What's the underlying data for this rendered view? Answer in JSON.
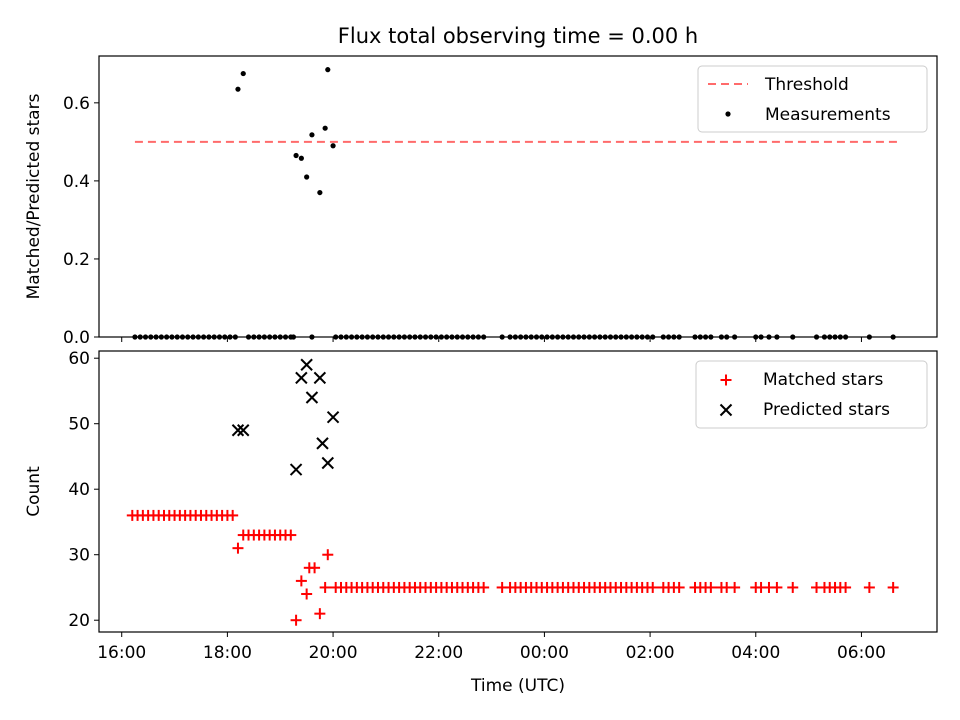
{
  "figure": {
    "title": "Flux total observing time = 0.00 h"
  },
  "colors": {
    "threshold": "#ff6b6b",
    "measurements": "#000000",
    "matched": "#ff0000",
    "predicted": "#000000"
  },
  "chart_data": [
    {
      "type": "scatter",
      "panel": "top",
      "title": "Flux total observing time = 0.00 h",
      "xlabel": "",
      "ylabel": "Matched/Predicted stars",
      "x_unit": "hours (UTC, 16:00 = 16, 00:00 next day = 24)",
      "xlim": [
        15.57,
        31.43
      ],
      "ylim": [
        0.0,
        0.72
      ],
      "yticks": [
        "0.0",
        "0.2",
        "0.4",
        "0.6"
      ],
      "ytick_values": [
        0.0,
        0.2,
        0.4,
        0.6
      ],
      "grid": false,
      "legend_position": "upper right",
      "threshold": {
        "name": "Threshold",
        "y": 0.5,
        "x": [
          16.25,
          30.7
        ]
      },
      "series": [
        {
          "name": "Measurements",
          "marker": "dot",
          "points": [
            [
              18.2,
              0.635
            ],
            [
              18.3,
              0.675
            ],
            [
              19.3,
              0.465
            ],
            [
              19.4,
              0.458
            ],
            [
              19.5,
              0.41
            ],
            [
              19.6,
              0.518
            ],
            [
              19.75,
              0.37
            ],
            [
              19.85,
              0.535
            ],
            [
              19.9,
              0.685
            ],
            [
              20.0,
              0.49
            ]
          ],
          "zero_points": [
            16.25,
            16.35,
            16.45,
            16.55,
            16.65,
            16.75,
            16.85,
            16.95,
            17.05,
            17.15,
            17.25,
            17.35,
            17.45,
            17.55,
            17.65,
            17.75,
            17.85,
            17.95,
            18.05,
            18.15,
            18.4,
            18.5,
            18.6,
            18.7,
            18.8,
            18.9,
            19.0,
            19.1,
            19.2,
            19.25,
            19.6,
            20.05,
            20.15,
            20.25,
            20.35,
            20.45,
            20.55,
            20.65,
            20.75,
            20.85,
            20.95,
            21.05,
            21.15,
            21.25,
            21.35,
            21.45,
            21.55,
            21.65,
            21.75,
            21.85,
            21.95,
            22.05,
            22.15,
            22.25,
            22.35,
            22.45,
            22.55,
            22.65,
            22.75,
            22.85,
            23.2,
            23.35,
            23.45,
            23.55,
            23.65,
            23.75,
            23.85,
            23.95,
            24.05,
            24.15,
            24.25,
            24.35,
            24.45,
            24.55,
            24.65,
            24.75,
            24.85,
            24.95,
            25.05,
            25.15,
            25.25,
            25.35,
            25.45,
            25.55,
            25.65,
            25.75,
            25.85,
            25.95,
            26.05,
            26.25,
            26.35,
            26.45,
            26.55,
            26.85,
            26.95,
            27.05,
            27.15,
            27.35,
            27.45,
            27.6,
            28.0,
            28.1,
            28.25,
            28.4,
            28.7,
            29.15,
            29.3,
            29.4,
            29.5,
            29.6,
            29.7,
            30.15,
            30.6
          ]
        }
      ]
    },
    {
      "type": "scatter",
      "panel": "bottom",
      "xlabel": "Time (UTC)",
      "ylabel": "Count",
      "x_unit": "hours (UTC, 16:00 = 16, 00:00 next day = 24)",
      "xlim": [
        15.57,
        31.43
      ],
      "ylim": [
        18.2,
        61.1
      ],
      "yticks": [
        "20",
        "30",
        "40",
        "50",
        "60"
      ],
      "ytick_values": [
        20,
        30,
        40,
        50,
        60
      ],
      "xticks": [
        "16:00",
        "18:00",
        "20:00",
        "22:00",
        "00:00",
        "02:00",
        "04:00",
        "06:00"
      ],
      "xtick_values": [
        16,
        18,
        20,
        22,
        24,
        26,
        28,
        30
      ],
      "grid": false,
      "legend_position": "upper right",
      "series": [
        {
          "name": "Matched stars",
          "marker": "plus",
          "points": [
            [
              16.2,
              36
            ],
            [
              16.3,
              36
            ],
            [
              16.4,
              36
            ],
            [
              16.5,
              36
            ],
            [
              16.6,
              36
            ],
            [
              16.7,
              36
            ],
            [
              16.8,
              36
            ],
            [
              16.9,
              36
            ],
            [
              17.0,
              36
            ],
            [
              17.1,
              36
            ],
            [
              17.2,
              36
            ],
            [
              17.3,
              36
            ],
            [
              17.4,
              36
            ],
            [
              17.5,
              36
            ],
            [
              17.6,
              36
            ],
            [
              17.7,
              36
            ],
            [
              17.8,
              36
            ],
            [
              17.9,
              36
            ],
            [
              18.0,
              36
            ],
            [
              18.1,
              36
            ],
            [
              18.2,
              31
            ],
            [
              18.3,
              33
            ],
            [
              18.4,
              33
            ],
            [
              18.5,
              33
            ],
            [
              18.6,
              33
            ],
            [
              18.7,
              33
            ],
            [
              18.8,
              33
            ],
            [
              18.9,
              33
            ],
            [
              19.0,
              33
            ],
            [
              19.1,
              33
            ],
            [
              19.2,
              33
            ],
            [
              19.3,
              20
            ],
            [
              19.4,
              26
            ],
            [
              19.5,
              24
            ],
            [
              19.55,
              28
            ],
            [
              19.65,
              28
            ],
            [
              19.75,
              21
            ],
            [
              19.85,
              25
            ],
            [
              19.9,
              30
            ],
            [
              20.05,
              25
            ],
            [
              20.15,
              25
            ],
            [
              20.25,
              25
            ],
            [
              20.35,
              25
            ],
            [
              20.45,
              25
            ],
            [
              20.55,
              25
            ],
            [
              20.65,
              25
            ],
            [
              20.75,
              25
            ],
            [
              20.85,
              25
            ],
            [
              20.95,
              25
            ],
            [
              21.05,
              25
            ],
            [
              21.15,
              25
            ],
            [
              21.25,
              25
            ],
            [
              21.35,
              25
            ],
            [
              21.45,
              25
            ],
            [
              21.55,
              25
            ],
            [
              21.65,
              25
            ],
            [
              21.75,
              25
            ],
            [
              21.85,
              25
            ],
            [
              21.95,
              25
            ],
            [
              22.05,
              25
            ],
            [
              22.15,
              25
            ],
            [
              22.25,
              25
            ],
            [
              22.35,
              25
            ],
            [
              22.45,
              25
            ],
            [
              22.55,
              25
            ],
            [
              22.65,
              25
            ],
            [
              22.75,
              25
            ],
            [
              22.85,
              25
            ],
            [
              23.2,
              25
            ],
            [
              23.35,
              25
            ],
            [
              23.45,
              25
            ],
            [
              23.55,
              25
            ],
            [
              23.65,
              25
            ],
            [
              23.75,
              25
            ],
            [
              23.85,
              25
            ],
            [
              23.95,
              25
            ],
            [
              24.05,
              25
            ],
            [
              24.15,
              25
            ],
            [
              24.25,
              25
            ],
            [
              24.35,
              25
            ],
            [
              24.45,
              25
            ],
            [
              24.55,
              25
            ],
            [
              24.65,
              25
            ],
            [
              24.75,
              25
            ],
            [
              24.85,
              25
            ],
            [
              24.95,
              25
            ],
            [
              25.05,
              25
            ],
            [
              25.15,
              25
            ],
            [
              25.25,
              25
            ],
            [
              25.35,
              25
            ],
            [
              25.45,
              25
            ],
            [
              25.55,
              25
            ],
            [
              25.65,
              25
            ],
            [
              25.75,
              25
            ],
            [
              25.85,
              25
            ],
            [
              25.95,
              25
            ],
            [
              26.05,
              25
            ],
            [
              26.25,
              25
            ],
            [
              26.35,
              25
            ],
            [
              26.45,
              25
            ],
            [
              26.55,
              25
            ],
            [
              26.85,
              25
            ],
            [
              26.95,
              25
            ],
            [
              27.05,
              25
            ],
            [
              27.15,
              25
            ],
            [
              27.35,
              25
            ],
            [
              27.45,
              25
            ],
            [
              27.6,
              25
            ],
            [
              28.0,
              25
            ],
            [
              28.1,
              25
            ],
            [
              28.25,
              25
            ],
            [
              28.4,
              25
            ],
            [
              28.7,
              25
            ],
            [
              29.15,
              25
            ],
            [
              29.3,
              25
            ],
            [
              29.4,
              25
            ],
            [
              29.5,
              25
            ],
            [
              29.6,
              25
            ],
            [
              29.7,
              25
            ],
            [
              30.15,
              25
            ],
            [
              30.6,
              25
            ]
          ]
        },
        {
          "name": "Predicted stars",
          "marker": "x",
          "points": [
            [
              18.2,
              49
            ],
            [
              18.3,
              49
            ],
            [
              19.3,
              43
            ],
            [
              19.4,
              57
            ],
            [
              19.5,
              59
            ],
            [
              19.6,
              54
            ],
            [
              19.75,
              57
            ],
            [
              19.8,
              47
            ],
            [
              19.9,
              44
            ],
            [
              20.0,
              51
            ]
          ]
        }
      ]
    }
  ]
}
